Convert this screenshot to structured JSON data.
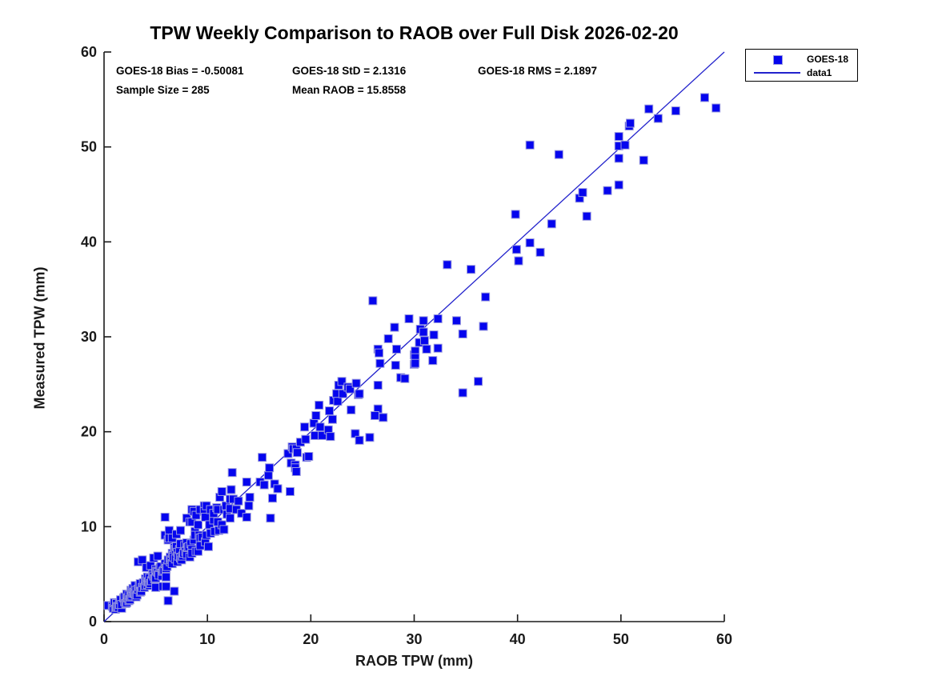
{
  "title": "TPW Weekly Comparison to RAOB over Full Disk 2026-02-20",
  "stats": {
    "bias": "GOES-18 Bias = -0.50081",
    "std": "GOES-18 StD = 2.1316",
    "rms": "GOES-18 RMS = 2.1897",
    "sample_size": "Sample Size = 285",
    "mean_raob": "Mean RAOB = 15.8558"
  },
  "legend": {
    "marker_entry": "GOES-18",
    "line_entry": "data1"
  },
  "colors": {
    "marker_fill": "#0505ee",
    "marker_edge": "#9a9ade",
    "line": "#2222cc",
    "axis": "#1a1a1a",
    "text": "#000000"
  },
  "chart_data": {
    "type": "scatter",
    "title": "TPW Weekly Comparison to RAOB over Full Disk 2026-02-20",
    "xlabel": "RAOB TPW (mm)",
    "ylabel": "Measured TPW (mm)",
    "xlim": [
      0,
      60
    ],
    "ylim": [
      0,
      60
    ],
    "xticks": [
      0,
      10,
      20,
      30,
      40,
      50,
      60
    ],
    "yticks": [
      0,
      10,
      20,
      30,
      40,
      50,
      60
    ],
    "grid": false,
    "legend_position": "outside-top-right",
    "annotations": [
      "GOES-18 Bias = -0.50081",
      "GOES-18 StD = 2.1316",
      "GOES-18 RMS = 2.1897",
      "Sample Size = 285",
      "Mean RAOB = 15.8558"
    ],
    "identity_line": {
      "name": "data1",
      "from": [
        0,
        0
      ],
      "to": [
        60,
        60
      ]
    },
    "series": [
      {
        "name": "GOES-18",
        "marker": "square",
        "points": [
          [
            0.4,
            1.7
          ],
          [
            0.8,
            1.6
          ],
          [
            0.9,
            1.4
          ],
          [
            1.0,
            2.0
          ],
          [
            1.1,
            1.3
          ],
          [
            1.2,
            1.9
          ],
          [
            1.2,
            1.5
          ],
          [
            1.3,
            1.6
          ],
          [
            1.4,
            1.5
          ],
          [
            1.5,
            1.8
          ],
          [
            1.6,
            2.3
          ],
          [
            1.7,
            1.4
          ],
          [
            1.7,
            1.8
          ],
          [
            1.9,
            2.5
          ],
          [
            2.0,
            2.1
          ],
          [
            2.0,
            2.6
          ],
          [
            2.1,
            1.9
          ],
          [
            2.2,
            2.9
          ],
          [
            2.2,
            2.0
          ],
          [
            2.3,
            2.5
          ],
          [
            2.4,
            2.2
          ],
          [
            2.4,
            2.8
          ],
          [
            2.5,
            2.3
          ],
          [
            2.6,
            3.3
          ],
          [
            2.6,
            2.6
          ],
          [
            2.7,
            2.7
          ],
          [
            2.7,
            3.2
          ],
          [
            2.8,
            3.0
          ],
          [
            2.8,
            3.5
          ],
          [
            2.9,
            3.1
          ],
          [
            3.0,
            3.8
          ],
          [
            3.0,
            2.9
          ],
          [
            3.1,
            3.3
          ],
          [
            3.1,
            2.6
          ],
          [
            3.2,
            2.8
          ],
          [
            3.3,
            3.4
          ],
          [
            3.3,
            6.3
          ],
          [
            3.4,
            3.7
          ],
          [
            3.5,
            4.0
          ],
          [
            3.5,
            3.1
          ],
          [
            3.6,
            3.2
          ],
          [
            3.7,
            6.5
          ],
          [
            3.7,
            3.6
          ],
          [
            3.8,
            4.1
          ],
          [
            3.9,
            3.6
          ],
          [
            4.0,
            3.8
          ],
          [
            4.0,
            4.5
          ],
          [
            4.1,
            4.3
          ],
          [
            4.1,
            5.7
          ],
          [
            4.2,
            3.9
          ],
          [
            4.2,
            4.7
          ],
          [
            4.3,
            4.2
          ],
          [
            4.4,
            4.6
          ],
          [
            4.4,
            3.8
          ],
          [
            4.5,
            4.0
          ],
          [
            4.5,
            5.9
          ],
          [
            4.6,
            4.3
          ],
          [
            4.7,
            5.0
          ],
          [
            4.8,
            4.8
          ],
          [
            4.8,
            6.7
          ],
          [
            4.9,
            4.5
          ],
          [
            5.0,
            4.6
          ],
          [
            5.0,
            3.6
          ],
          [
            5.0,
            5.5
          ],
          [
            5.1,
            5.3
          ],
          [
            5.2,
            5.2
          ],
          [
            5.2,
            6.9
          ],
          [
            5.3,
            4.9
          ],
          [
            5.4,
            5.7
          ],
          [
            5.5,
            5.8
          ],
          [
            5.6,
            5.1
          ],
          [
            5.6,
            4.8
          ],
          [
            5.7,
            5.3
          ],
          [
            5.7,
            3.7
          ],
          [
            5.8,
            5.4
          ],
          [
            5.9,
            6.1
          ],
          [
            5.9,
            9.1
          ],
          [
            5.9,
            11.0
          ],
          [
            6.0,
            5.6
          ],
          [
            6.0,
            3.7
          ],
          [
            6.0,
            4.7
          ],
          [
            6.1,
            5.8
          ],
          [
            6.2,
            6.5
          ],
          [
            6.2,
            2.2
          ],
          [
            6.2,
            8.6
          ],
          [
            6.3,
            9.6
          ],
          [
            6.3,
            8.8
          ],
          [
            6.4,
            6.3
          ],
          [
            6.4,
            6.8
          ],
          [
            6.5,
            6.5
          ],
          [
            6.6,
            8.8
          ],
          [
            6.6,
            7.2
          ],
          [
            6.6,
            6.1
          ],
          [
            6.7,
            7.0
          ],
          [
            6.7,
            6.8
          ],
          [
            6.8,
            7.8
          ],
          [
            6.8,
            3.2
          ],
          [
            6.9,
            6.6
          ],
          [
            6.9,
            7.6
          ],
          [
            7.0,
            9.2
          ],
          [
            7.0,
            7.9
          ],
          [
            7.1,
            6.3
          ],
          [
            7.1,
            7.3
          ],
          [
            7.2,
            6.9
          ],
          [
            7.3,
            7.6
          ],
          [
            7.4,
            9.6
          ],
          [
            7.4,
            6.7
          ],
          [
            7.4,
            8.2
          ],
          [
            7.5,
            6.5
          ],
          [
            7.6,
            6.9
          ],
          [
            7.7,
            7.2
          ],
          [
            7.8,
            8.0
          ],
          [
            7.9,
            7.4
          ],
          [
            8.0,
            10.9
          ],
          [
            8.0,
            7.1
          ],
          [
            8.0,
            8.3
          ],
          [
            8.1,
            7.8
          ],
          [
            8.2,
            7.9
          ],
          [
            8.3,
            10.5
          ],
          [
            8.3,
            6.8
          ],
          [
            8.4,
            8.2
          ],
          [
            8.5,
            10.5
          ],
          [
            8.5,
            11.8
          ],
          [
            8.5,
            7.6
          ],
          [
            8.5,
            7.2
          ],
          [
            8.7,
            8.6
          ],
          [
            8.7,
            11.6
          ],
          [
            8.8,
            9.5
          ],
          [
            8.8,
            9.1
          ],
          [
            8.9,
            11.2
          ],
          [
            8.9,
            7.4
          ],
          [
            9.1,
            10.2
          ],
          [
            9.1,
            7.4
          ],
          [
            9.2,
            9.1
          ],
          [
            9.3,
            11.8
          ],
          [
            9.3,
            8.8
          ],
          [
            9.3,
            8.0
          ],
          [
            9.5,
            8.9
          ],
          [
            9.7,
            12.2
          ],
          [
            9.7,
            11.6
          ],
          [
            9.8,
            11.0
          ],
          [
            9.8,
            8.4
          ],
          [
            9.9,
            9.1
          ],
          [
            9.9,
            12.2
          ],
          [
            10.1,
            7.9
          ],
          [
            10.2,
            10.2
          ],
          [
            10.3,
            11.8
          ],
          [
            10.3,
            9.3
          ],
          [
            10.6,
            10.7
          ],
          [
            10.6,
            11.4
          ],
          [
            10.7,
            9.5
          ],
          [
            10.9,
            12.0
          ],
          [
            11.0,
            10.5
          ],
          [
            11.0,
            11.8
          ],
          [
            11.1,
            9.6
          ],
          [
            11.2,
            13.1
          ],
          [
            11.4,
            10.2
          ],
          [
            11.4,
            13.7
          ],
          [
            11.6,
            9.7
          ],
          [
            11.6,
            11.8
          ],
          [
            11.8,
            12.2
          ],
          [
            11.9,
            11.3
          ],
          [
            12.2,
            11.9
          ],
          [
            12.2,
            10.9
          ],
          [
            12.2,
            12.9
          ],
          [
            12.3,
            13.9
          ],
          [
            12.4,
            15.7
          ],
          [
            12.5,
            12.9
          ],
          [
            12.8,
            11.8
          ],
          [
            13.0,
            12.7
          ],
          [
            13.3,
            11.4
          ],
          [
            13.8,
            14.7
          ],
          [
            13.8,
            11.0
          ],
          [
            14.0,
            12.2
          ],
          [
            14.1,
            13.1
          ],
          [
            15.1,
            14.7
          ],
          [
            15.3,
            17.3
          ],
          [
            15.5,
            14.4
          ],
          [
            15.9,
            15.4
          ],
          [
            16.0,
            16.2
          ],
          [
            16.1,
            10.9
          ],
          [
            16.3,
            13.0
          ],
          [
            16.5,
            14.5
          ],
          [
            16.8,
            14.0
          ],
          [
            17.8,
            17.7
          ],
          [
            18.0,
            13.7
          ],
          [
            18.1,
            16.7
          ],
          [
            18.2,
            18.4
          ],
          [
            18.3,
            18.2
          ],
          [
            18.5,
            16.5
          ],
          [
            18.5,
            16.2
          ],
          [
            18.6,
            18.2
          ],
          [
            18.6,
            15.8
          ],
          [
            18.7,
            17.8
          ],
          [
            19.0,
            18.9
          ],
          [
            19.4,
            20.5
          ],
          [
            19.5,
            19.2
          ],
          [
            19.6,
            17.3
          ],
          [
            19.8,
            17.4
          ],
          [
            20.3,
            20.9
          ],
          [
            20.4,
            19.6
          ],
          [
            20.5,
            21.7
          ],
          [
            20.8,
            22.8
          ],
          [
            20.9,
            20.5
          ],
          [
            21.1,
            19.6
          ],
          [
            21.7,
            20.2
          ],
          [
            21.8,
            22.2
          ],
          [
            21.9,
            19.5
          ],
          [
            22.1,
            21.3
          ],
          [
            22.2,
            23.3
          ],
          [
            22.5,
            24.0
          ],
          [
            22.6,
            23.2
          ],
          [
            22.7,
            24.9
          ],
          [
            23.0,
            25.3
          ],
          [
            23.1,
            24.0
          ],
          [
            23.6,
            24.7
          ],
          [
            23.8,
            24.5
          ],
          [
            23.9,
            22.3
          ],
          [
            24.3,
            19.8
          ],
          [
            24.4,
            25.1
          ],
          [
            24.6,
            23.9
          ],
          [
            24.7,
            24.0
          ],
          [
            24.7,
            19.1
          ],
          [
            25.7,
            19.4
          ],
          [
            26.0,
            33.8
          ],
          [
            26.5,
            24.9
          ],
          [
            26.5,
            28.7
          ],
          [
            26.5,
            22.4
          ],
          [
            26.2,
            21.7
          ],
          [
            26.6,
            28.3
          ],
          [
            26.7,
            27.2
          ],
          [
            27.0,
            21.5
          ],
          [
            27.5,
            29.8
          ],
          [
            28.1,
            31.0
          ],
          [
            28.2,
            27.0
          ],
          [
            28.3,
            28.7
          ],
          [
            28.7,
            25.7
          ],
          [
            29.1,
            25.6
          ],
          [
            29.5,
            31.9
          ],
          [
            30.0,
            28.1
          ],
          [
            30.0,
            27.1
          ],
          [
            30.1,
            28.5
          ],
          [
            30.1,
            27.8
          ],
          [
            30.1,
            27.2
          ],
          [
            30.5,
            29.4
          ],
          [
            30.6,
            30.8
          ],
          [
            30.9,
            31.7
          ],
          [
            30.9,
            30.5
          ],
          [
            31.0,
            29.6
          ],
          [
            31.2,
            28.7
          ],
          [
            31.8,
            27.5
          ],
          [
            31.9,
            30.2
          ],
          [
            32.3,
            31.9
          ],
          [
            32.3,
            28.8
          ],
          [
            33.2,
            37.6
          ],
          [
            34.1,
            31.7
          ],
          [
            34.7,
            30.3
          ],
          [
            34.7,
            24.1
          ],
          [
            35.5,
            37.1
          ],
          [
            36.2,
            25.3
          ],
          [
            36.7,
            31.1
          ],
          [
            36.9,
            34.2
          ],
          [
            39.8,
            42.9
          ],
          [
            39.9,
            39.2
          ],
          [
            40.1,
            38.0
          ],
          [
            41.2,
            50.2
          ],
          [
            41.2,
            39.9
          ],
          [
            42.2,
            38.9
          ],
          [
            43.3,
            41.9
          ],
          [
            44.0,
            49.2
          ],
          [
            46.0,
            44.6
          ],
          [
            46.3,
            45.2
          ],
          [
            46.7,
            42.7
          ],
          [
            48.7,
            45.4
          ],
          [
            49.8,
            51.1
          ],
          [
            49.8,
            50.1
          ],
          [
            49.8,
            48.8
          ],
          [
            49.8,
            46.0
          ],
          [
            50.4,
            50.2
          ],
          [
            50.8,
            52.2
          ],
          [
            50.9,
            52.5
          ],
          [
            52.2,
            48.6
          ],
          [
            52.7,
            54.0
          ],
          [
            53.6,
            53.0
          ],
          [
            55.3,
            53.8
          ],
          [
            58.1,
            55.2
          ],
          [
            59.2,
            54.1
          ]
        ]
      }
    ]
  }
}
